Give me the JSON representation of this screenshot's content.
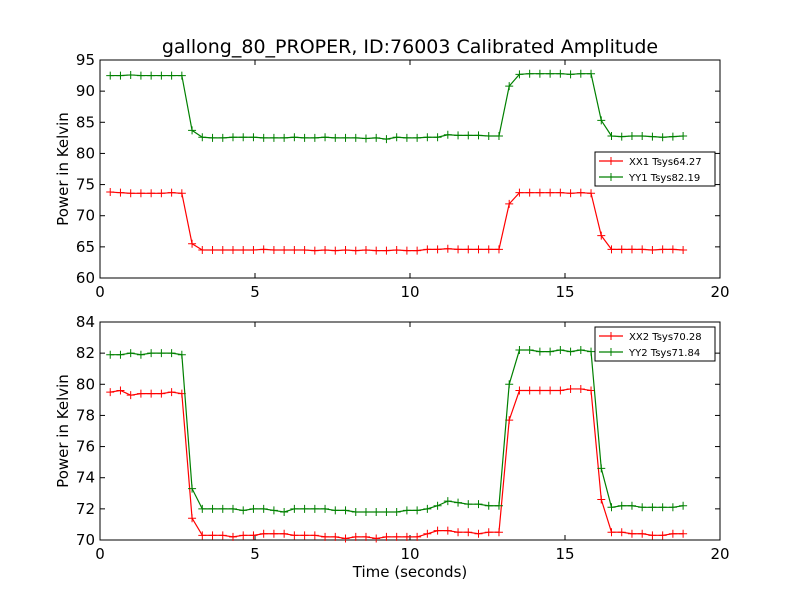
{
  "figure": {
    "title": "gallong_80_PROPER, ID:76003 Calibrated Amplitude"
  },
  "chart_data": [
    {
      "type": "line",
      "title": "gallong_80_PROPER, ID:76003 Calibrated Amplitude",
      "xlabel": "",
      "ylabel": "Power in Kelvin",
      "xlim": [
        0,
        20
      ],
      "ylim": [
        60,
        95
      ],
      "xticks": [
        0,
        5,
        10,
        15,
        20
      ],
      "yticks": [
        60,
        65,
        70,
        75,
        80,
        85,
        90,
        95
      ],
      "grid": false,
      "legend_position": "right",
      "x": [
        0.33,
        0.66,
        0.99,
        1.32,
        1.65,
        1.98,
        2.31,
        2.64,
        2.97,
        3.3,
        3.63,
        3.96,
        4.29,
        4.62,
        4.95,
        5.28,
        5.61,
        5.94,
        6.27,
        6.6,
        6.93,
        7.26,
        7.59,
        7.92,
        8.25,
        8.58,
        8.91,
        9.24,
        9.57,
        9.9,
        10.23,
        10.56,
        10.89,
        11.22,
        11.55,
        11.88,
        12.21,
        12.54,
        12.87,
        13.2,
        13.53,
        13.86,
        14.19,
        14.52,
        14.85,
        15.18,
        15.51,
        15.84,
        16.17,
        16.5,
        16.83,
        17.16,
        17.49,
        17.82,
        18.15,
        18.48,
        18.81
      ],
      "series": [
        {
          "name": "XX1 Tsys64.27",
          "color": "#ff0000",
          "values": [
            73.8,
            73.7,
            73.6,
            73.6,
            73.6,
            73.6,
            73.7,
            73.6,
            65.5,
            64.5,
            64.5,
            64.5,
            64.5,
            64.5,
            64.5,
            64.6,
            64.5,
            64.5,
            64.5,
            64.5,
            64.4,
            64.5,
            64.4,
            64.5,
            64.4,
            64.5,
            64.4,
            64.4,
            64.5,
            64.4,
            64.4,
            64.6,
            64.6,
            64.7,
            64.6,
            64.6,
            64.6,
            64.6,
            64.6,
            71.9,
            73.7,
            73.7,
            73.7,
            73.7,
            73.7,
            73.6,
            73.7,
            73.6,
            66.8,
            64.6,
            64.6,
            64.6,
            64.6,
            64.5,
            64.6,
            64.6,
            64.5
          ]
        },
        {
          "name": "YY1 Tsys82.19",
          "color": "#008000",
          "values": [
            92.5,
            92.5,
            92.6,
            92.5,
            92.5,
            92.5,
            92.5,
            92.5,
            83.7,
            82.6,
            82.5,
            82.5,
            82.6,
            82.6,
            82.6,
            82.5,
            82.5,
            82.5,
            82.6,
            82.5,
            82.5,
            82.6,
            82.5,
            82.5,
            82.5,
            82.4,
            82.5,
            82.3,
            82.6,
            82.5,
            82.5,
            82.6,
            82.6,
            83.0,
            82.9,
            82.9,
            82.9,
            82.8,
            82.8,
            90.8,
            92.7,
            92.8,
            92.8,
            92.8,
            92.8,
            92.7,
            92.8,
            92.8,
            85.3,
            82.8,
            82.7,
            82.8,
            82.8,
            82.7,
            82.6,
            82.7,
            82.8
          ]
        }
      ]
    },
    {
      "type": "line",
      "title": "",
      "xlabel": "Time (seconds)",
      "ylabel": "Power in Kelvin",
      "xlim": [
        0,
        20
      ],
      "ylim": [
        70,
        84
      ],
      "xticks": [
        0,
        5,
        10,
        15,
        20
      ],
      "yticks": [
        70,
        72,
        74,
        76,
        78,
        80,
        82,
        84
      ],
      "grid": false,
      "legend_position": "top-right",
      "x": [
        0.33,
        0.66,
        0.99,
        1.32,
        1.65,
        1.98,
        2.31,
        2.64,
        2.97,
        3.3,
        3.63,
        3.96,
        4.29,
        4.62,
        4.95,
        5.28,
        5.61,
        5.94,
        6.27,
        6.6,
        6.93,
        7.26,
        7.59,
        7.92,
        8.25,
        8.58,
        8.91,
        9.24,
        9.57,
        9.9,
        10.23,
        10.56,
        10.89,
        11.22,
        11.55,
        11.88,
        12.21,
        12.54,
        12.87,
        13.2,
        13.53,
        13.86,
        14.19,
        14.52,
        14.85,
        15.18,
        15.51,
        15.84,
        16.17,
        16.5,
        16.83,
        17.16,
        17.49,
        17.82,
        18.15,
        18.48,
        18.81
      ],
      "series": [
        {
          "name": "XX2 Tsys70.28",
          "color": "#ff0000",
          "values": [
            79.5,
            79.6,
            79.3,
            79.4,
            79.4,
            79.4,
            79.5,
            79.4,
            71.4,
            70.3,
            70.3,
            70.3,
            70.2,
            70.3,
            70.3,
            70.4,
            70.4,
            70.4,
            70.3,
            70.3,
            70.3,
            70.2,
            70.2,
            70.1,
            70.2,
            70.2,
            70.1,
            70.2,
            70.2,
            70.2,
            70.2,
            70.4,
            70.6,
            70.6,
            70.5,
            70.5,
            70.4,
            70.5,
            70.5,
            77.7,
            79.6,
            79.6,
            79.6,
            79.6,
            79.6,
            79.7,
            79.7,
            79.6,
            72.6,
            70.5,
            70.5,
            70.4,
            70.4,
            70.3,
            70.3,
            70.4,
            70.4
          ]
        },
        {
          "name": "YY2 Tsys71.84",
          "color": "#008000",
          "values": [
            81.9,
            81.9,
            82.0,
            81.9,
            82.0,
            82.0,
            82.0,
            81.9,
            73.3,
            72.0,
            72.0,
            72.0,
            72.0,
            71.9,
            72.0,
            72.0,
            71.9,
            71.8,
            72.0,
            72.0,
            72.0,
            72.0,
            71.9,
            71.9,
            71.8,
            71.8,
            71.8,
            71.8,
            71.8,
            71.9,
            71.9,
            72.0,
            72.2,
            72.5,
            72.4,
            72.3,
            72.3,
            72.2,
            72.2,
            80.0,
            82.2,
            82.2,
            82.1,
            82.1,
            82.2,
            82.1,
            82.2,
            82.1,
            74.6,
            72.1,
            72.2,
            72.2,
            72.1,
            72.1,
            72.1,
            72.1,
            72.2
          ]
        }
      ]
    }
  ]
}
